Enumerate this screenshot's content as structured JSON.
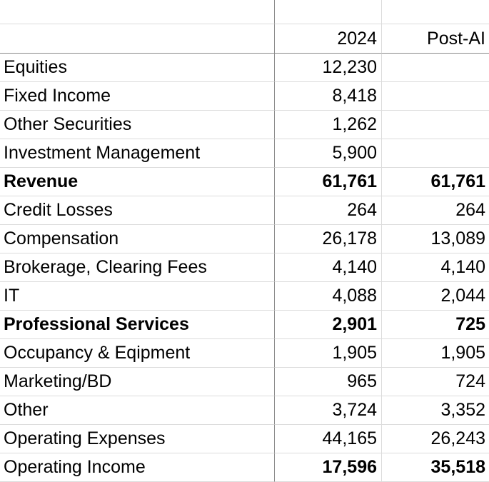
{
  "table": {
    "header": {
      "label": "",
      "col2024": "2024",
      "colPostAI": "Post-AI"
    },
    "rows": [
      {
        "label": "Equities",
        "v2024": "12,230",
        "vPostAI": "",
        "bold": "none"
      },
      {
        "label": "Fixed Income",
        "v2024": "8,418",
        "vPostAI": "",
        "bold": "none"
      },
      {
        "label": "Other Securities",
        "v2024": "1,262",
        "vPostAI": "",
        "bold": "none"
      },
      {
        "label": "Investment Management",
        "v2024": "5,900",
        "vPostAI": "",
        "bold": "none"
      },
      {
        "label": "Revenue",
        "v2024": "61,761",
        "vPostAI": "61,761",
        "bold": "all"
      },
      {
        "label": "Credit Losses",
        "v2024": "264",
        "vPostAI": "264",
        "bold": "none"
      },
      {
        "label": "Compensation",
        "v2024": "26,178",
        "vPostAI": "13,089",
        "bold": "none"
      },
      {
        "label": "Brokerage, Clearing Fees",
        "v2024": "4,140",
        "vPostAI": "4,140",
        "bold": "none"
      },
      {
        "label": "IT",
        "v2024": "4,088",
        "vPostAI": "2,044",
        "bold": "none"
      },
      {
        "label": "Professional Services",
        "v2024": "2,901",
        "vPostAI": "725",
        "bold": "all"
      },
      {
        "label": "Occupancy & Eqipment",
        "v2024": "1,905",
        "vPostAI": "1,905",
        "bold": "none"
      },
      {
        "label": "Marketing/BD",
        "v2024": "965",
        "vPostAI": "724",
        "bold": "none"
      },
      {
        "label": "Other",
        "v2024": "3,724",
        "vPostAI": "3,352",
        "bold": "none"
      },
      {
        "label": "Operating Expenses",
        "v2024": "44,165",
        "vPostAI": "26,243",
        "bold": "none"
      },
      {
        "label": "Operating Income",
        "v2024": "17,596",
        "vPostAI": "35,518",
        "bold": "values"
      }
    ]
  },
  "colors": {
    "grid_light": "#dcdcdc",
    "grid_dark": "#8a8a8a",
    "text": "#000000",
    "background": "#ffffff"
  }
}
